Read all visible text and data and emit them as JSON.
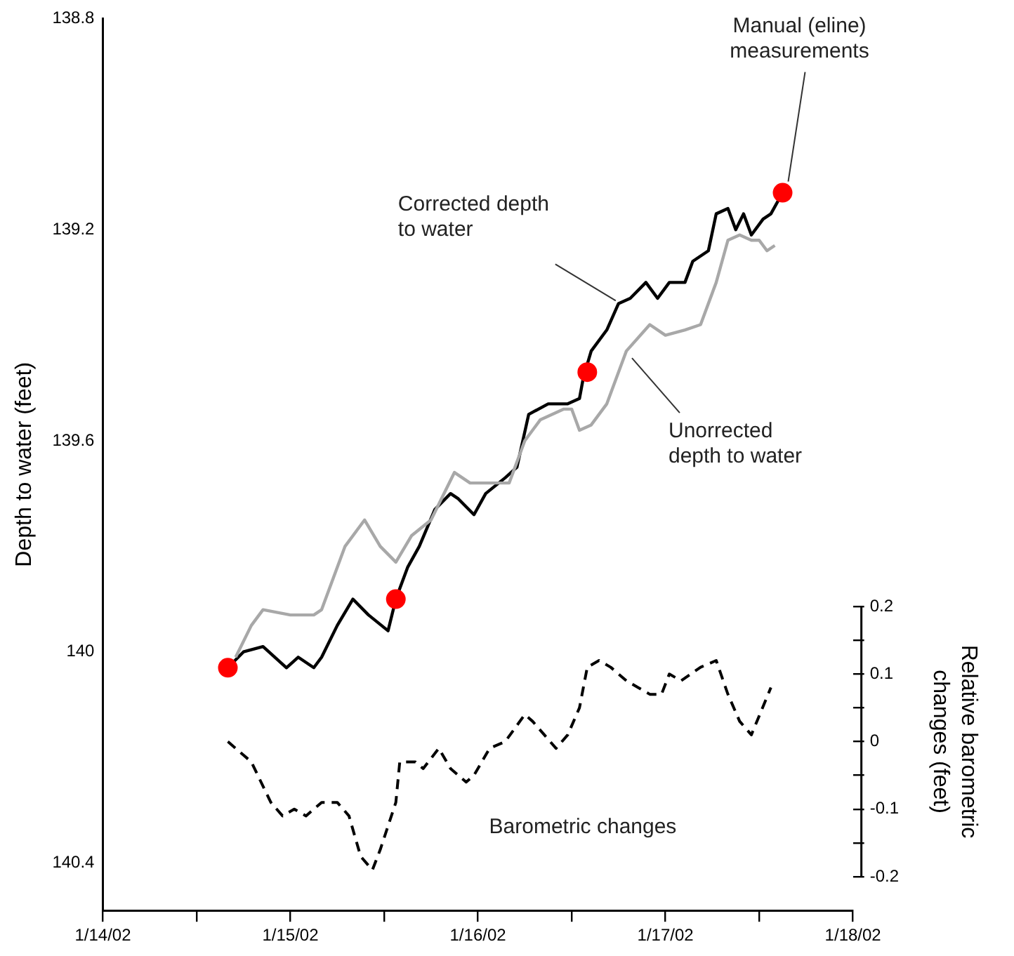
{
  "chart_data": {
    "type": "line",
    "ylabel": "Depth to water (feet)",
    "y2label": "Relative  barometric changes (feet)",
    "xlim": [
      "--01-14",
      "--01-18"
    ],
    "xticks": [
      {
        "value": "--01-14",
        "label": "1/14/02"
      },
      {
        "value": "--01-14T12:00",
        "label": null
      },
      {
        "value": "--01-15",
        "label": "1/15/02"
      },
      {
        "value": "--01-15T12:00",
        "label": null
      },
      {
        "value": "--01-16",
        "label": "1/16/02"
      },
      {
        "value": "--01-16T12:00",
        "label": null
      },
      {
        "value": "--01-17",
        "label": "1/17/02"
      },
      {
        "value": "--01-17T12:00",
        "label": null
      },
      {
        "value": "--01-18",
        "label": "1/18/02"
      }
    ],
    "ylim": [
      140.49,
      138.8
    ],
    "yticks": [
      138.8,
      139.2,
      139.6,
      140,
      140.4
    ],
    "y2lim": [
      -0.25,
      1.07
    ],
    "y2ticks": [
      -0.2,
      {
        "value": -0.15,
        "label": null
      },
      -0.1,
      {
        "value": -0.05,
        "label": null
      },
      0,
      {
        "value": 0.05,
        "label": null
      },
      0.1,
      {
        "value": 0.15,
        "label": null
      },
      0.2
    ],
    "grid": false,
    "legend": false,
    "series": [
      {
        "color": "#a8a8a8",
        "line_style": "solid",
        "marker": "none",
        "x": [
          "--01-14T17:00",
          "--01-14T19:00",
          "--01-14T20:30",
          "--01-15T00:00",
          "--01-15T03:00",
          "--01-15T04:00",
          "--01-15T07:00",
          "--01-15T09:30",
          "--01-15T11:30",
          "--01-15T13:30",
          "--01-15T15:30",
          "--01-15T18:00",
          "--01-15T21:00",
          "--01-15T23:00",
          "--01-16T01:30",
          "--01-16T04:00",
          "--01-16T06:00",
          "--01-16T08:00",
          "--01-16T11:00",
          "--01-16T12:00",
          "--01-16T13:00",
          "--01-16T14:30",
          "--01-16T16:30",
          "--01-16T19:00",
          "--01-16T22:00",
          "--01-17T00:00",
          "--01-17T02:30",
          "--01-17T04:30",
          "--01-17T06:30",
          "--01-17T08:00",
          "--01-17T09:30",
          "--01-17T11:00",
          "--01-17T12:00",
          "--01-17T13:00",
          "--01-17T14:00"
        ],
        "values": [
          140.01,
          139.95,
          139.92,
          139.93,
          139.93,
          139.92,
          139.8,
          139.75,
          139.8,
          139.83,
          139.78,
          139.75,
          139.66,
          139.68,
          139.68,
          139.68,
          139.6,
          139.56,
          139.54,
          139.54,
          139.58,
          139.57,
          139.53,
          139.43,
          139.38,
          139.4,
          139.39,
          139.38,
          139.3,
          139.22,
          139.21,
          139.22,
          139.22,
          139.24,
          139.23
        ]
      },
      {
        "color": "#000000",
        "line_style": "solid",
        "marker": "none",
        "x": [
          "--01-14T16:00",
          "--01-14T18:00",
          "--01-14T20:30",
          "--01-14T23:30",
          "--01-15T01:00",
          "--01-15T03:00",
          "--01-15T04:00",
          "--01-15T06:00",
          "--01-15T08:00",
          "--01-15T10:00",
          "--01-15T12:30",
          "--01-15T13:30",
          "--01-15T15:00",
          "--01-15T16:30",
          "--01-15T18:30",
          "--01-15T20:30",
          "--01-15T21:30",
          "--01-15T23:30",
          "--01-16T01:00",
          "--01-16T03:30",
          "--01-16T05:00",
          "--01-16T06:30",
          "--01-16T09:00",
          "--01-16T11:30",
          "--01-16T13:00",
          "--01-16T13:30",
          "--01-16T14:30",
          "--01-16T16:30",
          "--01-16T18:00",
          "--01-16T19:30",
          "--01-16T21:30",
          "--01-16T23:00",
          "--01-17T00:30",
          "--01-17T02:30",
          "--01-17T03:30",
          "--01-17T05:30",
          "--01-17T06:30",
          "--01-17T08:00",
          "--01-17T09:00",
          "--01-17T10:00",
          "--01-17T11:00",
          "--01-17T12:30",
          "--01-17T13:30",
          "--01-17T15:00"
        ],
        "values": [
          140.03,
          140.0,
          139.99,
          140.03,
          140.01,
          140.03,
          140.01,
          139.95,
          139.9,
          139.93,
          139.96,
          139.9,
          139.84,
          139.8,
          139.73,
          139.7,
          139.71,
          139.74,
          139.7,
          139.67,
          139.65,
          139.55,
          139.53,
          139.53,
          139.52,
          139.48,
          139.43,
          139.39,
          139.34,
          139.33,
          139.3,
          139.33,
          139.3,
          139.3,
          139.26,
          139.24,
          139.17,
          139.16,
          139.2,
          139.17,
          139.21,
          139.18,
          139.17,
          139.13
        ]
      },
      {
        "axis": "y2",
        "color": "#000000",
        "line_style": "dashed",
        "marker": "none",
        "x": [
          "--01-14T16:00",
          "--01-14T18:00",
          "--01-14T19:00",
          "--01-14T21:30",
          "--01-14T23:00",
          "--01-15T00:30",
          "--01-15T02:00",
          "--01-15T04:00",
          "--01-15T06:00",
          "--01-15T07:30",
          "--01-15T09:00",
          "--01-15T10:30",
          "--01-15T11:30",
          "--01-15T13:30",
          "--01-15T14:00",
          "--01-15T16:00",
          "--01-15T17:00",
          "--01-15T19:00",
          "--01-15T20:30",
          "--01-15T22:30",
          "--01-15T23:30",
          "--01-16T01:30",
          "--01-16T03:30",
          "--01-16T06:00",
          "--01-16T07:00",
          "--01-16T08:30",
          "--01-16T10:00",
          "--01-16T11:30",
          "--01-16T13:00",
          "--01-16T14:00",
          "--01-16T15:30",
          "--01-16T17:00",
          "--01-16T19:00",
          "--01-16T20:30",
          "--01-16T22:00",
          "--01-16T23:30",
          "--01-17T00:30",
          "--01-17T02:00",
          "--01-17T04:30",
          "--01-17T06:30",
          "--01-17T08:00",
          "--01-17T09:30",
          "--01-17T11:00",
          "--01-17T13:30"
        ],
        "values": [
          0.0,
          -0.02,
          -0.03,
          -0.09,
          -0.11,
          -0.1,
          -0.11,
          -0.09,
          -0.09,
          -0.11,
          -0.17,
          -0.19,
          -0.16,
          -0.09,
          -0.03,
          -0.03,
          -0.04,
          -0.01,
          -0.04,
          -0.06,
          -0.05,
          -0.01,
          0.0,
          0.04,
          0.03,
          0.01,
          -0.01,
          0.01,
          0.05,
          0.11,
          0.12,
          0.11,
          0.09,
          0.08,
          0.07,
          0.07,
          0.1,
          0.09,
          0.11,
          0.12,
          0.07,
          0.03,
          0.01,
          0.08
        ]
      },
      {
        "type": "scatter",
        "color": "#ff0000",
        "marker": "circle",
        "x": [
          "--01-14T16:00",
          "--01-15T13:30",
          "--01-16T14:00",
          "--01-17T15:00"
        ],
        "values": [
          140.03,
          139.9,
          139.47,
          139.13
        ]
      }
    ],
    "annotations": [
      {
        "text": "Corrected depth to water",
        "x": "--01-16T18:00",
        "y": 139.34
      },
      {
        "text": "Unorrected depth to water",
        "x": "--01-16T19:00",
        "y": 139.43
      },
      {
        "text": "Manual (eline) measurements",
        "x": "--01-17T15:00",
        "y": 139.13
      },
      "Barometric changes"
    ]
  }
}
